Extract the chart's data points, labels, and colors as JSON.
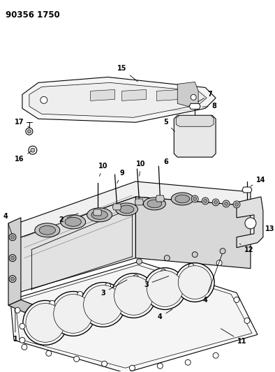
{
  "title": "90356 1750",
  "bg_color": "#ffffff",
  "line_color": "#000000",
  "fig_width": 3.94,
  "fig_height": 5.33,
  "dpi": 100
}
